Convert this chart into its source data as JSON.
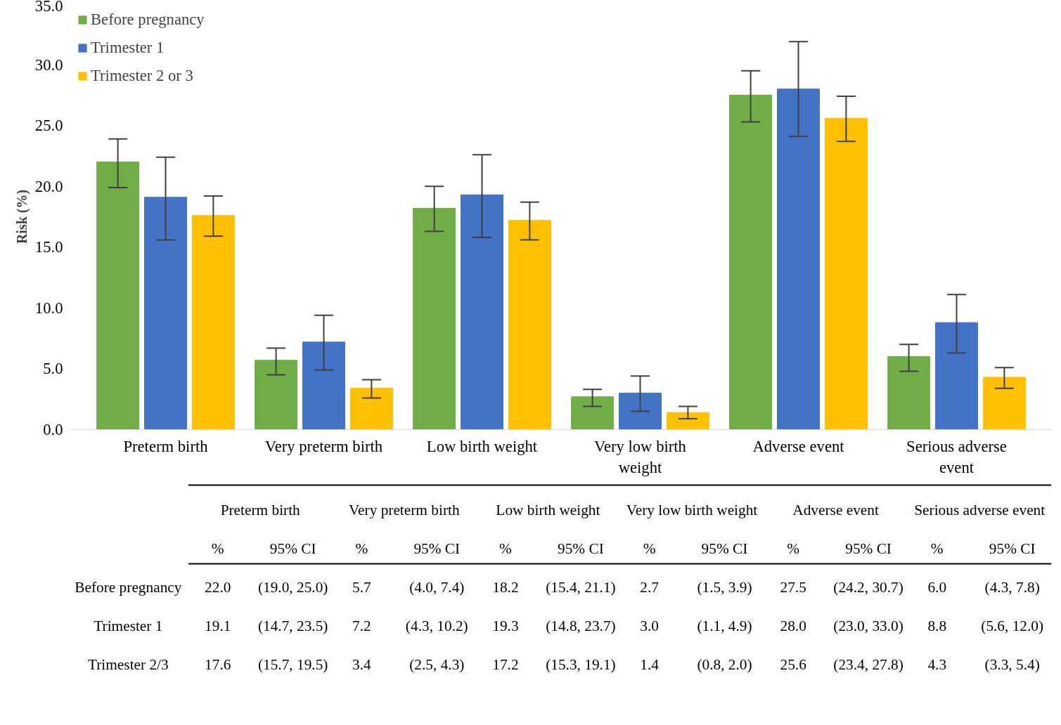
{
  "chart_data": {
    "type": "bar",
    "ylabel": "Risk (%)",
    "categories": [
      "Preterm birth",
      "Very preterm birth",
      "Low birth weight",
      "Very low birth weight",
      "Adverse event",
      "Serious adverse event"
    ],
    "series": [
      {
        "name": "Before pregnancy",
        "color": "#70ad47",
        "values": [
          22.0,
          5.7,
          18.2,
          2.7,
          27.5,
          6.0
        ],
        "errors": [
          [
            19.9,
            23.9
          ],
          [
            4.5,
            6.7
          ],
          [
            16.3,
            20.0
          ],
          [
            1.9,
            3.3
          ],
          [
            25.3,
            29.5
          ],
          [
            4.8,
            7.0
          ]
        ]
      },
      {
        "name": "Trimester 1",
        "color": "#4472c4",
        "values": [
          19.1,
          7.2,
          19.3,
          3.0,
          28.0,
          8.8
        ],
        "errors": [
          [
            15.6,
            22.4
          ],
          [
            4.9,
            9.4
          ],
          [
            15.8,
            22.6
          ],
          [
            1.5,
            4.4
          ],
          [
            24.1,
            31.9
          ],
          [
            6.3,
            11.1
          ]
        ]
      },
      {
        "name": "Trimester 2 or 3",
        "color": "#ffc000",
        "values": [
          17.6,
          3.4,
          17.2,
          1.4,
          25.6,
          4.3
        ],
        "errors": [
          [
            15.9,
            19.2
          ],
          [
            2.6,
            4.1
          ],
          [
            15.6,
            18.7
          ],
          [
            0.9,
            1.9
          ],
          [
            23.7,
            27.4
          ],
          [
            3.4,
            5.1
          ]
        ]
      }
    ],
    "ylim": [
      0,
      35
    ],
    "yticks": [
      {
        "value": 0,
        "label": "0.0"
      },
      {
        "value": 5,
        "label": "5.0"
      },
      {
        "value": 10,
        "label": "10.0"
      },
      {
        "value": 15,
        "label": "15.0"
      },
      {
        "value": 20,
        "label": "20.0"
      },
      {
        "value": 25,
        "label": "25.0"
      },
      {
        "value": 30,
        "label": "30.0"
      },
      {
        "value": 35,
        "label": "35.0"
      }
    ],
    "grid": false,
    "legend": "top left",
    "annotations": [
      "%",
      "95% CI",
      "Before pregnancy",
      "Trimester 1",
      "Trimester 2/3",
      "(19.0, 25.0)",
      "(4.0, 7.4)",
      "(15.4, 21.1)",
      "(1.5, 3.9)",
      "(24.2, 30.7)",
      "(4.3, 7.8)",
      "(14.7, 23.5)",
      "(4.3, 10.2)",
      "(14.8, 23.7)",
      "(1.1, 4.9)",
      "(23.0, 33.0)",
      "(5.6, 12.0)",
      "(15.7, 19.5)",
      "(2.5, 4.3)",
      "(15.3, 19.1)",
      "(0.8, 2.0)",
      "(23.4, 27.8)",
      "(3.3, 5.4)",
      "22.0",
      "5.7",
      "18.2",
      "2.7",
      "27.5",
      "6.0",
      "19.1",
      "7.2",
      "19.3",
      "3.0",
      "28.0",
      "8.8",
      "17.6",
      "3.4",
      "17.2",
      "1.4",
      "25.6",
      "4.3"
    ]
  }
}
